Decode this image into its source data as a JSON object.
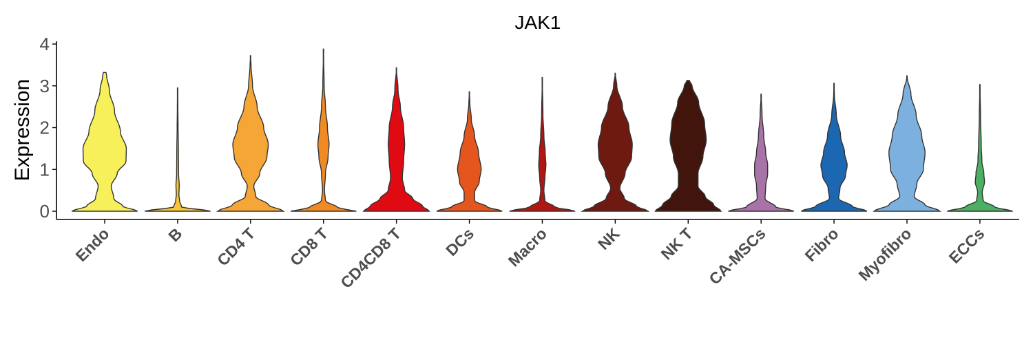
{
  "chart_data": {
    "type": "violin",
    "title": "JAK1",
    "xlabel": "",
    "ylabel": "Expression",
    "ylim": [
      -0.2,
      4.05
    ],
    "yticks": [
      0,
      1,
      2,
      3,
      4
    ],
    "grid": false,
    "legend": "none",
    "categories": [
      "Endo",
      "B",
      "CD4 T",
      "CD8 T",
      "CD4CD8 T",
      "DCs",
      "Macro",
      "NK",
      "NK T",
      "CA-MSCs",
      "Fibro",
      "Myofibro",
      "ECCs"
    ],
    "colors": [
      "#f7f05a",
      "#f8c43a",
      "#f5a636",
      "#f08a24",
      "#e00a12",
      "#e4561e",
      "#b01612",
      "#6e1a10",
      "#42150c",
      "#a873a6",
      "#1c67b1",
      "#7cb1df",
      "#4caf62"
    ],
    "violins": [
      {
        "name": "Endo",
        "max": 3.32,
        "profile": [
          [
            0,
            1.0
          ],
          [
            0.12,
            0.55
          ],
          [
            0.3,
            0.28
          ],
          [
            0.6,
            0.2
          ],
          [
            0.9,
            0.38
          ],
          [
            1.2,
            0.65
          ],
          [
            1.5,
            0.66
          ],
          [
            1.9,
            0.48
          ],
          [
            2.4,
            0.3
          ],
          [
            2.9,
            0.14
          ],
          [
            3.25,
            0.06
          ],
          [
            3.32,
            0.04
          ]
        ]
      },
      {
        "name": "B",
        "max": 2.95,
        "profile": [
          [
            0,
            1.0
          ],
          [
            0.1,
            0.12
          ],
          [
            0.25,
            0.06
          ],
          [
            0.4,
            0.04
          ],
          [
            0.6,
            0.05
          ],
          [
            0.9,
            0.03
          ],
          [
            1.4,
            0.025
          ],
          [
            2.0,
            0.015
          ],
          [
            2.5,
            0.008
          ],
          [
            2.95,
            0.0
          ]
        ]
      },
      {
        "name": "CD4 T",
        "max": 3.72,
        "profile": [
          [
            0,
            1.0
          ],
          [
            0.15,
            0.55
          ],
          [
            0.35,
            0.16
          ],
          [
            0.6,
            0.1
          ],
          [
            0.9,
            0.28
          ],
          [
            1.3,
            0.5
          ],
          [
            1.6,
            0.54
          ],
          [
            2.0,
            0.4
          ],
          [
            2.5,
            0.2
          ],
          [
            3.0,
            0.06
          ],
          [
            3.5,
            0.015
          ],
          [
            3.72,
            0.0
          ]
        ]
      },
      {
        "name": "CD8 T",
        "max": 3.88,
        "profile": [
          [
            0,
            1.0
          ],
          [
            0.08,
            0.45
          ],
          [
            0.25,
            0.06
          ],
          [
            0.5,
            0.03
          ],
          [
            0.9,
            0.06
          ],
          [
            1.3,
            0.14
          ],
          [
            1.6,
            0.17
          ],
          [
            2.0,
            0.12
          ],
          [
            2.5,
            0.06
          ],
          [
            3.0,
            0.02
          ],
          [
            3.88,
            0.0
          ]
        ]
      },
      {
        "name": "CD4CD8 T",
        "max": 3.43,
        "profile": [
          [
            0,
            1.0
          ],
          [
            0.12,
            0.8
          ],
          [
            0.3,
            0.5
          ],
          [
            0.5,
            0.25
          ],
          [
            0.8,
            0.18
          ],
          [
            1.2,
            0.22
          ],
          [
            1.6,
            0.25
          ],
          [
            2.0,
            0.22
          ],
          [
            2.5,
            0.12
          ],
          [
            2.9,
            0.05
          ],
          [
            3.43,
            0.0
          ]
        ]
      },
      {
        "name": "DCs",
        "max": 2.86,
        "profile": [
          [
            0,
            1.0
          ],
          [
            0.1,
            0.55
          ],
          [
            0.25,
            0.16
          ],
          [
            0.45,
            0.16
          ],
          [
            0.7,
            0.3
          ],
          [
            1.0,
            0.36
          ],
          [
            1.4,
            0.28
          ],
          [
            1.8,
            0.16
          ],
          [
            2.2,
            0.06
          ],
          [
            2.6,
            0.015
          ],
          [
            2.86,
            0.0
          ]
        ]
      },
      {
        "name": "Macro",
        "max": 3.2,
        "profile": [
          [
            0,
            1.0
          ],
          [
            0.1,
            0.38
          ],
          [
            0.25,
            0.08
          ],
          [
            0.5,
            0.05
          ],
          [
            0.8,
            0.08
          ],
          [
            1.1,
            0.11
          ],
          [
            1.4,
            0.09
          ],
          [
            1.8,
            0.05
          ],
          [
            2.3,
            0.02
          ],
          [
            3.2,
            0.0
          ]
        ]
      },
      {
        "name": "NK",
        "max": 3.3,
        "profile": [
          [
            0,
            1.0
          ],
          [
            0.12,
            0.65
          ],
          [
            0.3,
            0.28
          ],
          [
            0.55,
            0.14
          ],
          [
            0.9,
            0.3
          ],
          [
            1.3,
            0.5
          ],
          [
            1.6,
            0.52
          ],
          [
            2.0,
            0.42
          ],
          [
            2.5,
            0.22
          ],
          [
            3.0,
            0.05
          ],
          [
            3.3,
            0.0
          ]
        ]
      },
      {
        "name": "NK T",
        "max": 3.13,
        "profile": [
          [
            0,
            1.0
          ],
          [
            0.15,
            0.78
          ],
          [
            0.35,
            0.52
          ],
          [
            0.6,
            0.3
          ],
          [
            0.9,
            0.3
          ],
          [
            1.3,
            0.45
          ],
          [
            1.7,
            0.55
          ],
          [
            2.1,
            0.5
          ],
          [
            2.6,
            0.32
          ],
          [
            3.0,
            0.12
          ],
          [
            3.13,
            0.04
          ]
        ]
      },
      {
        "name": "CA-MSCs",
        "max": 2.8,
        "profile": [
          [
            0,
            1.0
          ],
          [
            0.1,
            0.45
          ],
          [
            0.3,
            0.12
          ],
          [
            0.6,
            0.14
          ],
          [
            0.9,
            0.2
          ],
          [
            1.1,
            0.2
          ],
          [
            1.4,
            0.14
          ],
          [
            1.8,
            0.08
          ],
          [
            2.3,
            0.03
          ],
          [
            2.8,
            0.0
          ]
        ]
      },
      {
        "name": "Fibro",
        "max": 3.06,
        "profile": [
          [
            0,
            1.0
          ],
          [
            0.12,
            0.55
          ],
          [
            0.3,
            0.14
          ],
          [
            0.55,
            0.18
          ],
          [
            0.85,
            0.35
          ],
          [
            1.1,
            0.4
          ],
          [
            1.4,
            0.32
          ],
          [
            1.8,
            0.2
          ],
          [
            2.3,
            0.07
          ],
          [
            2.8,
            0.01
          ],
          [
            3.06,
            0.0
          ]
        ]
      },
      {
        "name": "Myofibro",
        "max": 3.24,
        "profile": [
          [
            0,
            1.0
          ],
          [
            0.15,
            0.55
          ],
          [
            0.35,
            0.22
          ],
          [
            0.65,
            0.3
          ],
          [
            1.0,
            0.5
          ],
          [
            1.4,
            0.55
          ],
          [
            1.8,
            0.45
          ],
          [
            2.3,
            0.28
          ],
          [
            2.8,
            0.12
          ],
          [
            3.24,
            0.0
          ]
        ]
      },
      {
        "name": "ECCs",
        "max": 3.03,
        "profile": [
          [
            0,
            1.0
          ],
          [
            0.1,
            0.45
          ],
          [
            0.25,
            0.1
          ],
          [
            0.45,
            0.07
          ],
          [
            0.7,
            0.14
          ],
          [
            0.9,
            0.12
          ],
          [
            1.2,
            0.06
          ],
          [
            1.6,
            0.04
          ],
          [
            2.2,
            0.02
          ],
          [
            3.03,
            0.0
          ]
        ]
      }
    ]
  }
}
